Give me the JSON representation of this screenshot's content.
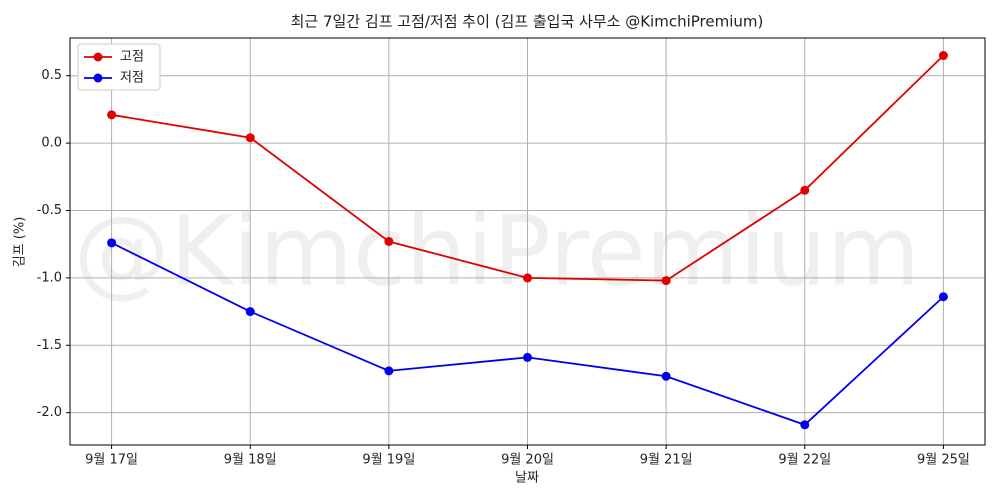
{
  "chart_data": {
    "type": "line",
    "title": "최근 7일간 김프 고점/저점 추이 (김프 출입국 사무소 @KimchiPremium)",
    "watermark": "@KimchiPremium",
    "x_label": "날짜",
    "y_label": "김프 (%)",
    "categories": [
      "9월 17일",
      "9월 18일",
      "9월 19일",
      "9월 20일",
      "9월 21일",
      "9월 22일",
      "9월 25일"
    ],
    "series": [
      {
        "name": "고점",
        "color": "#e00000",
        "values": [
          0.21,
          0.04,
          -0.73,
          -1.0,
          -1.02,
          -0.35,
          0.65
        ]
      },
      {
        "name": "저점",
        "color": "#0000ee",
        "values": [
          -0.74,
          -1.25,
          -1.69,
          -1.59,
          -1.73,
          -2.09,
          -1.14
        ]
      }
    ],
    "ylim": [
      -2.24,
      0.78
    ],
    "yticks": [
      0.5,
      {
        "value": 0,
        "label": "0.0"
      },
      -0.5,
      {
        "value": -1,
        "label": "-1.0"
      },
      -1.5,
      {
        "value": -2,
        "label": "-2.0"
      }
    ],
    "grid": true,
    "legend": "upper-left"
  }
}
